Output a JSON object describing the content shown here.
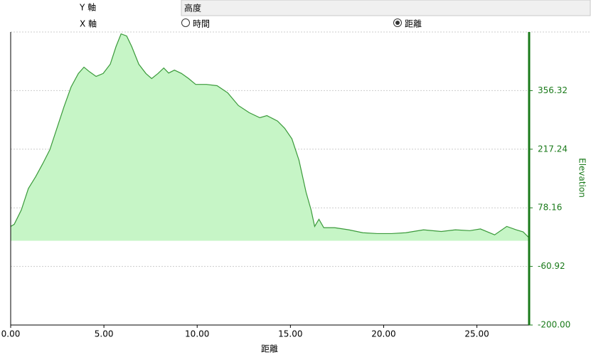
{
  "controls": {
    "y_axis_label": "Y 軸",
    "y_axis_value": "高度",
    "x_axis_label": "X 軸",
    "x_options": [
      {
        "label": "時間",
        "selected": false
      },
      {
        "label": "距離",
        "selected": true
      }
    ]
  },
  "chart_data": {
    "type": "area",
    "xlabel": "距離",
    "ylabel": "Elevation",
    "y_axis_side": "right",
    "color": "#3a9a3a",
    "fill": "#c6f5c6",
    "axis_color": "#1a7a1a",
    "grid": true,
    "xlim": [
      0,
      27.8
    ],
    "ylim": [
      -200,
      495.4
    ],
    "xticks": [
      {
        "value": 0,
        "label": "0.00"
      },
      {
        "value": 5,
        "label": "5.00"
      },
      {
        "value": 10,
        "label": "10.00"
      },
      {
        "value": 15,
        "label": "15.00"
      },
      {
        "value": 20,
        "label": "20.00"
      },
      {
        "value": 25,
        "label": "25.00"
      }
    ],
    "yticks": [
      {
        "value": -200,
        "label": "-200.00"
      },
      -60.92,
      78.16,
      217.24,
      356.32
    ],
    "x": [
      0,
      0.19,
      0.57,
      0.95,
      1.34,
      1.72,
      2.1,
      2.48,
      2.86,
      3.24,
      3.63,
      3.93,
      4.2,
      4.58,
      4.96,
      5.34,
      5.65,
      5.92,
      6.22,
      6.49,
      6.87,
      7.25,
      7.56,
      7.9,
      8.21,
      8.47,
      8.78,
      9.16,
      9.54,
      9.92,
      10.5,
      11.07,
      11.64,
      12.21,
      12.79,
      13.36,
      13.74,
      14.31,
      14.69,
      15.08,
      15.46,
      15.84,
      16.11,
      16.3,
      16.53,
      16.79,
      17.37,
      18.13,
      18.89,
      19.66,
      20.42,
      21.18,
      22.14,
      23.09,
      23.85,
      24.62,
      25.19,
      25.95,
      26.6,
      27.1,
      27.48,
      27.75
    ],
    "values": [
      34,
      39,
      73,
      124,
      152,
      183,
      216,
      267,
      318,
      365,
      397,
      412,
      402,
      390,
      397,
      419,
      461,
      491,
      486,
      461,
      419,
      397,
      385,
      397,
      410,
      398,
      405,
      397,
      385,
      371,
      371,
      368,
      351,
      321,
      304,
      292,
      297,
      284,
      267,
      242,
      191,
      115,
      73,
      34,
      51,
      31,
      31,
      26,
      19,
      17,
      17,
      19,
      26,
      22,
      26,
      24,
      28,
      14,
      34,
      26,
      21,
      9
    ]
  }
}
